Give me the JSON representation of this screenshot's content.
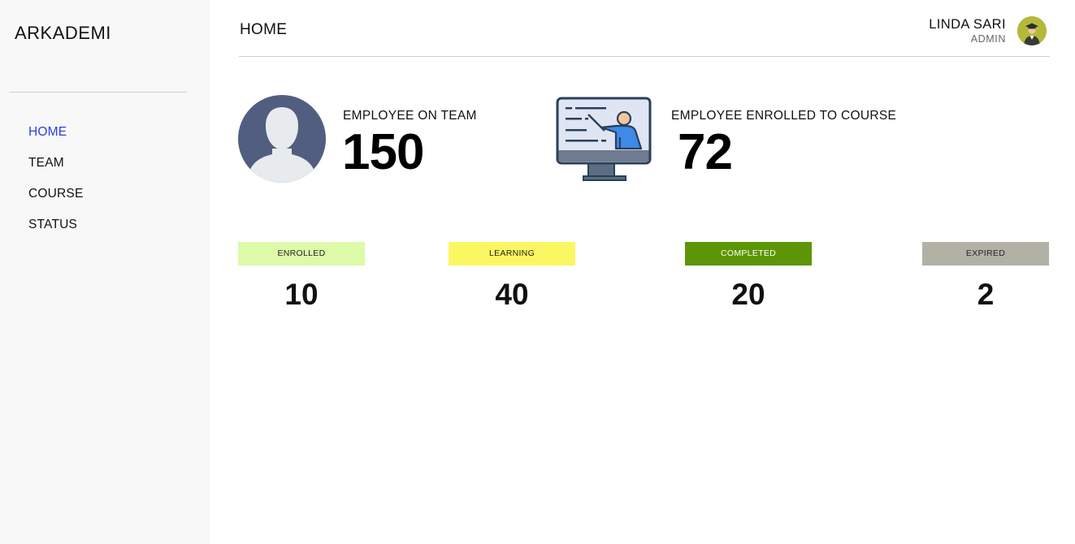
{
  "sidebar": {
    "brand": "ARKADEMI",
    "items": [
      {
        "label": "HOME",
        "active": true
      },
      {
        "label": "TEAM",
        "active": false
      },
      {
        "label": "COURSE",
        "active": false
      },
      {
        "label": "STATUS",
        "active": false
      }
    ]
  },
  "header": {
    "title": "HOME",
    "user_name": "LINDA SARI",
    "user_role": "ADMIN"
  },
  "stats": {
    "team": {
      "label": "EMPLOYEE ON TEAM",
      "value": "150",
      "icon": "employee-avatar-icon"
    },
    "course": {
      "label": "EMPLOYEE ENROLLED TO COURSE",
      "value": "72",
      "icon": "presentation-monitor-icon"
    }
  },
  "statuses": [
    {
      "label": "ENROLLED",
      "value": "10",
      "color": "#dcfaa8"
    },
    {
      "label": "LEARNING",
      "value": "40",
      "color": "#fbf763"
    },
    {
      "label": "COMPLETED",
      "value": "20",
      "color": "#5c9506"
    },
    {
      "label": "EXPIRED",
      "value": "2",
      "color": "#b1b1a5"
    }
  ],
  "colors": {
    "accent": "#2a3fe0",
    "sidebar_bg": "#f8f8f8",
    "avatar_bg": "#b3b93b"
  }
}
